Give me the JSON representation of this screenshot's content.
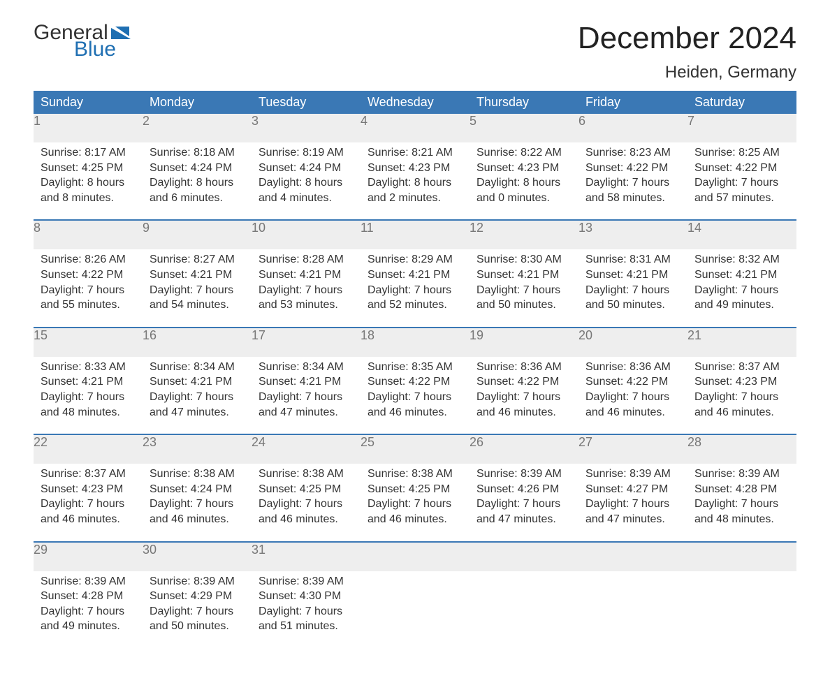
{
  "logo": {
    "word1": "General",
    "word2": "Blue",
    "mark_color": "#1f6fb2"
  },
  "title": "December 2024",
  "subtitle": "Heiden, Germany",
  "colors": {
    "header_bg": "#3a78b5",
    "header_text": "#ffffff",
    "daynum_bg": "#eeeeee",
    "daynum_text": "#777777",
    "body_text": "#333333",
    "separator": "#3a78b5",
    "page_bg": "#ffffff"
  },
  "weekday_headers": [
    "Sunday",
    "Monday",
    "Tuesday",
    "Wednesday",
    "Thursday",
    "Friday",
    "Saturday"
  ],
  "weeks": [
    [
      {
        "date": "1",
        "sunrise": "Sunrise: 8:17 AM",
        "sunset": "Sunset: 4:25 PM",
        "daylight1": "Daylight: 8 hours",
        "daylight2": "and 8 minutes."
      },
      {
        "date": "2",
        "sunrise": "Sunrise: 8:18 AM",
        "sunset": "Sunset: 4:24 PM",
        "daylight1": "Daylight: 8 hours",
        "daylight2": "and 6 minutes."
      },
      {
        "date": "3",
        "sunrise": "Sunrise: 8:19 AM",
        "sunset": "Sunset: 4:24 PM",
        "daylight1": "Daylight: 8 hours",
        "daylight2": "and 4 minutes."
      },
      {
        "date": "4",
        "sunrise": "Sunrise: 8:21 AM",
        "sunset": "Sunset: 4:23 PM",
        "daylight1": "Daylight: 8 hours",
        "daylight2": "and 2 minutes."
      },
      {
        "date": "5",
        "sunrise": "Sunrise: 8:22 AM",
        "sunset": "Sunset: 4:23 PM",
        "daylight1": "Daylight: 8 hours",
        "daylight2": "and 0 minutes."
      },
      {
        "date": "6",
        "sunrise": "Sunrise: 8:23 AM",
        "sunset": "Sunset: 4:22 PM",
        "daylight1": "Daylight: 7 hours",
        "daylight2": "and 58 minutes."
      },
      {
        "date": "7",
        "sunrise": "Sunrise: 8:25 AM",
        "sunset": "Sunset: 4:22 PM",
        "daylight1": "Daylight: 7 hours",
        "daylight2": "and 57 minutes."
      }
    ],
    [
      {
        "date": "8",
        "sunrise": "Sunrise: 8:26 AM",
        "sunset": "Sunset: 4:22 PM",
        "daylight1": "Daylight: 7 hours",
        "daylight2": "and 55 minutes."
      },
      {
        "date": "9",
        "sunrise": "Sunrise: 8:27 AM",
        "sunset": "Sunset: 4:21 PM",
        "daylight1": "Daylight: 7 hours",
        "daylight2": "and 54 minutes."
      },
      {
        "date": "10",
        "sunrise": "Sunrise: 8:28 AM",
        "sunset": "Sunset: 4:21 PM",
        "daylight1": "Daylight: 7 hours",
        "daylight2": "and 53 minutes."
      },
      {
        "date": "11",
        "sunrise": "Sunrise: 8:29 AM",
        "sunset": "Sunset: 4:21 PM",
        "daylight1": "Daylight: 7 hours",
        "daylight2": "and 52 minutes."
      },
      {
        "date": "12",
        "sunrise": "Sunrise: 8:30 AM",
        "sunset": "Sunset: 4:21 PM",
        "daylight1": "Daylight: 7 hours",
        "daylight2": "and 50 minutes."
      },
      {
        "date": "13",
        "sunrise": "Sunrise: 8:31 AM",
        "sunset": "Sunset: 4:21 PM",
        "daylight1": "Daylight: 7 hours",
        "daylight2": "and 50 minutes."
      },
      {
        "date": "14",
        "sunrise": "Sunrise: 8:32 AM",
        "sunset": "Sunset: 4:21 PM",
        "daylight1": "Daylight: 7 hours",
        "daylight2": "and 49 minutes."
      }
    ],
    [
      {
        "date": "15",
        "sunrise": "Sunrise: 8:33 AM",
        "sunset": "Sunset: 4:21 PM",
        "daylight1": "Daylight: 7 hours",
        "daylight2": "and 48 minutes."
      },
      {
        "date": "16",
        "sunrise": "Sunrise: 8:34 AM",
        "sunset": "Sunset: 4:21 PM",
        "daylight1": "Daylight: 7 hours",
        "daylight2": "and 47 minutes."
      },
      {
        "date": "17",
        "sunrise": "Sunrise: 8:34 AM",
        "sunset": "Sunset: 4:21 PM",
        "daylight1": "Daylight: 7 hours",
        "daylight2": "and 47 minutes."
      },
      {
        "date": "18",
        "sunrise": "Sunrise: 8:35 AM",
        "sunset": "Sunset: 4:22 PM",
        "daylight1": "Daylight: 7 hours",
        "daylight2": "and 46 minutes."
      },
      {
        "date": "19",
        "sunrise": "Sunrise: 8:36 AM",
        "sunset": "Sunset: 4:22 PM",
        "daylight1": "Daylight: 7 hours",
        "daylight2": "and 46 minutes."
      },
      {
        "date": "20",
        "sunrise": "Sunrise: 8:36 AM",
        "sunset": "Sunset: 4:22 PM",
        "daylight1": "Daylight: 7 hours",
        "daylight2": "and 46 minutes."
      },
      {
        "date": "21",
        "sunrise": "Sunrise: 8:37 AM",
        "sunset": "Sunset: 4:23 PM",
        "daylight1": "Daylight: 7 hours",
        "daylight2": "and 46 minutes."
      }
    ],
    [
      {
        "date": "22",
        "sunrise": "Sunrise: 8:37 AM",
        "sunset": "Sunset: 4:23 PM",
        "daylight1": "Daylight: 7 hours",
        "daylight2": "and 46 minutes."
      },
      {
        "date": "23",
        "sunrise": "Sunrise: 8:38 AM",
        "sunset": "Sunset: 4:24 PM",
        "daylight1": "Daylight: 7 hours",
        "daylight2": "and 46 minutes."
      },
      {
        "date": "24",
        "sunrise": "Sunrise: 8:38 AM",
        "sunset": "Sunset: 4:25 PM",
        "daylight1": "Daylight: 7 hours",
        "daylight2": "and 46 minutes."
      },
      {
        "date": "25",
        "sunrise": "Sunrise: 8:38 AM",
        "sunset": "Sunset: 4:25 PM",
        "daylight1": "Daylight: 7 hours",
        "daylight2": "and 46 minutes."
      },
      {
        "date": "26",
        "sunrise": "Sunrise: 8:39 AM",
        "sunset": "Sunset: 4:26 PM",
        "daylight1": "Daylight: 7 hours",
        "daylight2": "and 47 minutes."
      },
      {
        "date": "27",
        "sunrise": "Sunrise: 8:39 AM",
        "sunset": "Sunset: 4:27 PM",
        "daylight1": "Daylight: 7 hours",
        "daylight2": "and 47 minutes."
      },
      {
        "date": "28",
        "sunrise": "Sunrise: 8:39 AM",
        "sunset": "Sunset: 4:28 PM",
        "daylight1": "Daylight: 7 hours",
        "daylight2": "and 48 minutes."
      }
    ],
    [
      {
        "date": "29",
        "sunrise": "Sunrise: 8:39 AM",
        "sunset": "Sunset: 4:28 PM",
        "daylight1": "Daylight: 7 hours",
        "daylight2": "and 49 minutes."
      },
      {
        "date": "30",
        "sunrise": "Sunrise: 8:39 AM",
        "sunset": "Sunset: 4:29 PM",
        "daylight1": "Daylight: 7 hours",
        "daylight2": "and 50 minutes."
      },
      {
        "date": "31",
        "sunrise": "Sunrise: 8:39 AM",
        "sunset": "Sunset: 4:30 PM",
        "daylight1": "Daylight: 7 hours",
        "daylight2": "and 51 minutes."
      },
      null,
      null,
      null,
      null
    ]
  ]
}
